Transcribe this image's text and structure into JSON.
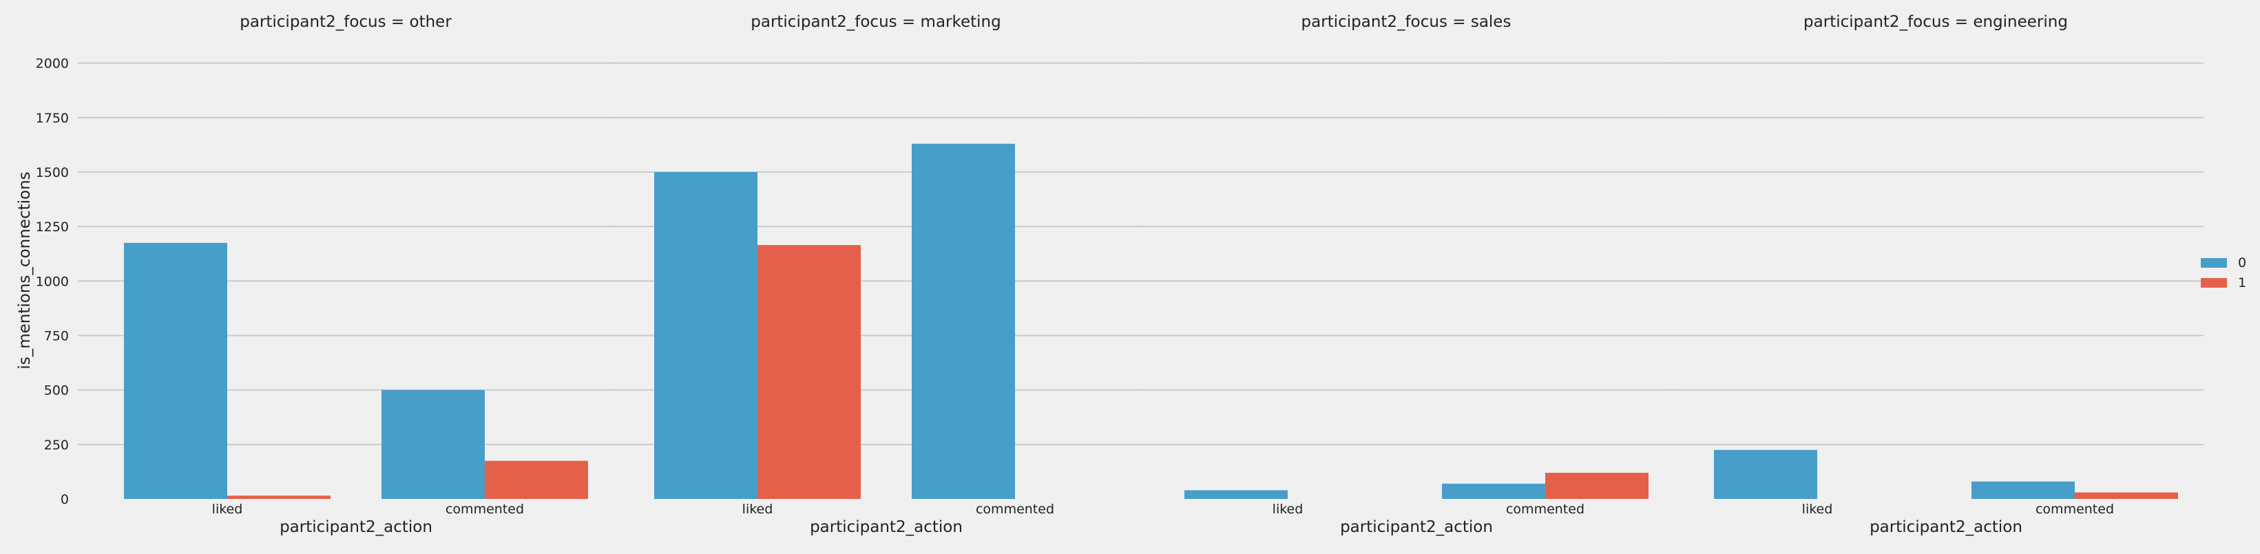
{
  "chart_data": {
    "type": "bar",
    "facet_variable": "participant2_focus",
    "facets": [
      {
        "title": "participant2_focus = other",
        "categories": [
          "liked",
          "commented"
        ],
        "series": [
          {
            "name": "0",
            "values": [
              1175,
              500
            ]
          },
          {
            "name": "1",
            "values": [
              15,
              175
            ]
          }
        ]
      },
      {
        "title": "participant2_focus = marketing",
        "categories": [
          "liked",
          "commented"
        ],
        "series": [
          {
            "name": "0",
            "values": [
              1500,
              1630
            ]
          },
          {
            "name": "1",
            "values": [
              1165,
              0
            ]
          }
        ]
      },
      {
        "title": "participant2_focus = sales",
        "categories": [
          "liked",
          "commented"
        ],
        "series": [
          {
            "name": "0",
            "values": [
              40,
              70
            ]
          },
          {
            "name": "1",
            "values": [
              0,
              120
            ]
          }
        ]
      },
      {
        "title": "participant2_focus = engineering",
        "categories": [
          "liked",
          "commented"
        ],
        "series": [
          {
            "name": "0",
            "values": [
              225,
              80
            ]
          },
          {
            "name": "1",
            "values": [
              0,
              30
            ]
          }
        ]
      }
    ],
    "xlabel": "participant2_action",
    "ylabel": "is_mentions_connections",
    "ylim": [
      0,
      2100
    ],
    "yticks": [
      "0",
      "250",
      "500",
      "750",
      "1000",
      "1250",
      "1500",
      "1750",
      "2000"
    ],
    "grid": true,
    "legend": {
      "placement": "right",
      "entries": [
        "0",
        "1"
      ]
    },
    "colors": {
      "0": "#479ec9",
      "1": "#e5604a",
      "background": "#f0f0f0",
      "grid": "#cbcbcb"
    }
  }
}
